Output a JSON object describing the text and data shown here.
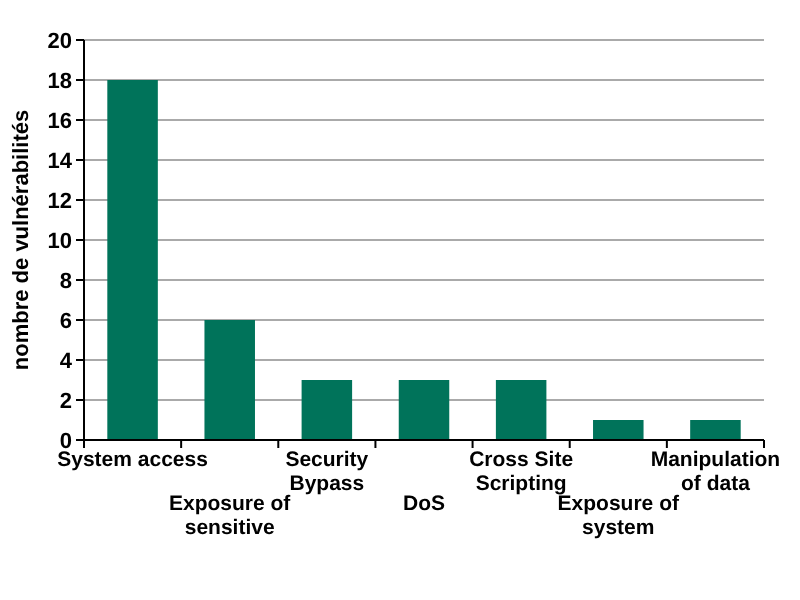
{
  "chart_data": {
    "type": "bar",
    "ylabel": "nombre de vulnérabilités",
    "categories": [
      "System access",
      "Exposure of sensitive",
      "Security Bypass",
      "DoS",
      "Cross Site Scripting",
      "Exposure of system",
      "Manipulation of data"
    ],
    "values": [
      18,
      6,
      3,
      3,
      3,
      1,
      1
    ],
    "color": "#00735a",
    "ylim": [
      0,
      20
    ],
    "yticks": [
      0,
      2,
      4,
      6,
      8,
      10,
      12,
      14,
      16,
      18,
      20
    ],
    "grid": "y"
  }
}
